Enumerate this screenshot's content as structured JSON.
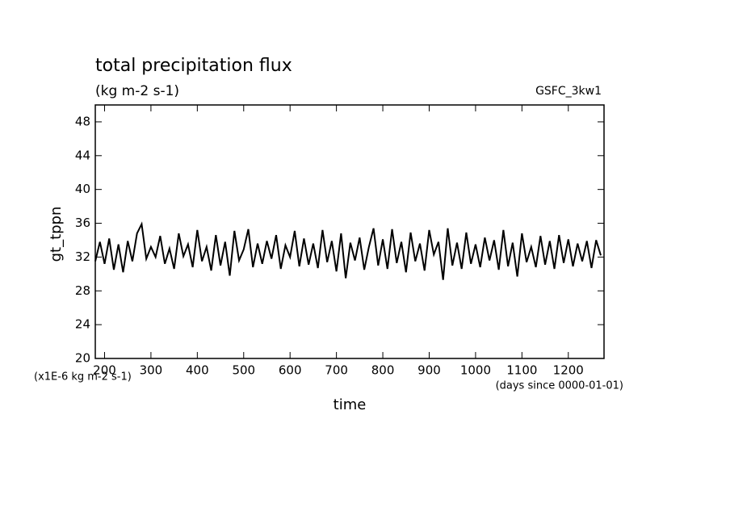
{
  "chart_data": {
    "type": "line",
    "title": "total precipitation flux",
    "subtitle": "(kg m-2 s-1)",
    "tag": "GSFC_3kw1",
    "y_label": "gt_tppn",
    "y_units": "(x1E-6 kg m-2 s-1)",
    "x_label": "time",
    "x_units": "(days since 0000-01-01)",
    "xlim": [
      180,
      1277
    ],
    "ylim": [
      20,
      50
    ],
    "xticks": [
      200,
      300,
      400,
      500,
      600,
      700,
      800,
      900,
      1000,
      1100,
      1200
    ],
    "yticks": [
      20,
      24,
      28,
      32,
      36,
      40,
      44,
      48
    ],
    "x": [
      180,
      190,
      200,
      210,
      220,
      230,
      240,
      250,
      260,
      270,
      280,
      290,
      300,
      310,
      320,
      330,
      340,
      350,
      360,
      370,
      380,
      390,
      400,
      410,
      420,
      430,
      440,
      450,
      460,
      470,
      480,
      490,
      500,
      510,
      520,
      530,
      540,
      550,
      560,
      570,
      580,
      590,
      600,
      610,
      620,
      630,
      640,
      650,
      660,
      670,
      680,
      690,
      700,
      710,
      720,
      730,
      740,
      750,
      760,
      770,
      780,
      790,
      800,
      810,
      820,
      830,
      840,
      850,
      860,
      870,
      880,
      890,
      900,
      910,
      920,
      930,
      940,
      950,
      960,
      970,
      980,
      990,
      1000,
      1010,
      1020,
      1030,
      1040,
      1050,
      1060,
      1070,
      1080,
      1090,
      1100,
      1110,
      1120,
      1130,
      1140,
      1150,
      1160,
      1170,
      1180,
      1190,
      1200,
      1210,
      1220,
      1230,
      1240,
      1250,
      1260,
      1270
    ],
    "series": [
      {
        "color": "#000000",
        "values": [
          31.5,
          33.8,
          31.2,
          34.2,
          30.5,
          33.5,
          30.2,
          33.9,
          31.5,
          34.8,
          35.9,
          31.8,
          33.2,
          32.0,
          34.5,
          31.2,
          33.0,
          30.6,
          34.8,
          32.1,
          33.5,
          30.8,
          35.2,
          31.5,
          33.2,
          30.4,
          34.6,
          31.0,
          33.8,
          29.8,
          35.1,
          31.6,
          32.9,
          35.3,
          30.8,
          33.6,
          31.2,
          33.9,
          31.8,
          34.6,
          30.6,
          33.4,
          32.0,
          35.1,
          30.9,
          34.2,
          31.1,
          33.6,
          30.7,
          35.2,
          31.4,
          33.9,
          30.3,
          34.8,
          29.5,
          33.7,
          31.6,
          34.3,
          30.5,
          33.2,
          35.4,
          31.0,
          34.1,
          30.6,
          35.3,
          31.3,
          33.8,
          30.2,
          34.9,
          31.5,
          33.6,
          30.4,
          35.2,
          32.3,
          33.8,
          29.3,
          35.4,
          31.0,
          33.7,
          30.6,
          34.9,
          31.2,
          33.5,
          30.8,
          34.3,
          31.6,
          34.0,
          30.5,
          35.2,
          30.9,
          33.7,
          29.7,
          34.8,
          31.4,
          33.2,
          30.8,
          34.5,
          31.1,
          33.9,
          30.6,
          34.6,
          31.3,
          34.1,
          30.9,
          33.6,
          31.5,
          33.9,
          30.7,
          34.0,
          32.2
        ]
      }
    ]
  }
}
